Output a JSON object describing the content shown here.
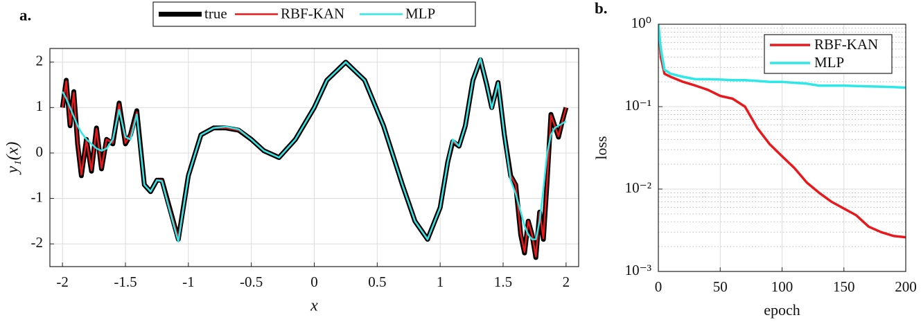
{
  "chart_data": [
    {
      "type": "line",
      "panel_label": "a.",
      "xlabel": "x",
      "ylabel": "y₁(x)",
      "xlim": [
        -2.1,
        2.1
      ],
      "ylim": [
        -2.5,
        2.3
      ],
      "xticks": [
        -2,
        -1.5,
        -1,
        -0.5,
        0,
        0.5,
        1,
        1.5,
        2
      ],
      "yticks": [
        -2,
        -1,
        0,
        1,
        2
      ],
      "grid": true,
      "legend": "top",
      "x": [
        -2,
        -1.97,
        -1.94,
        -1.91,
        -1.88,
        -1.85,
        -1.81,
        -1.77,
        -1.73,
        -1.69,
        -1.65,
        -1.6,
        -1.55,
        -1.5,
        -1.46,
        -1.41,
        -1.35,
        -1.3,
        -1.25,
        -1.21,
        -1.15,
        -1.08,
        -1.0,
        -0.9,
        -0.8,
        -0.7,
        -0.6,
        -0.5,
        -0.4,
        -0.28,
        -0.15,
        0,
        0.1,
        0.25,
        0.4,
        0.55,
        0.7,
        0.8,
        0.9,
        1.0,
        1.06,
        1.1,
        1.15,
        1.2,
        1.26,
        1.32,
        1.37,
        1.41,
        1.46,
        1.51,
        1.56,
        1.6,
        1.64,
        1.67,
        1.7,
        1.73,
        1.76,
        1.79,
        1.82,
        1.85,
        1.88,
        1.91,
        1.94,
        1.97,
        2.0
      ],
      "series": [
        {
          "name": "true",
          "color": "#000000",
          "width": 7,
          "values": [
            1.0,
            1.6,
            0.6,
            1.35,
            0.2,
            -0.5,
            0.3,
            -0.4,
            0.55,
            -0.35,
            0.3,
            0.2,
            1.1,
            0.2,
            0.4,
            0.93,
            -0.7,
            -0.85,
            -0.6,
            -0.6,
            -1.2,
            -1.9,
            -0.5,
            0.4,
            0.55,
            0.55,
            0.5,
            0.3,
            0.05,
            -0.1,
            0.3,
            1.0,
            1.6,
            2.0,
            1.6,
            0.6,
            -0.7,
            -1.5,
            -1.9,
            -1.2,
            -0.2,
            0.25,
            0.15,
            0.6,
            1.6,
            2.05,
            1.5,
            1.0,
            1.55,
            0.4,
            -0.5,
            -0.7,
            -1.8,
            -2.2,
            -1.5,
            -1.8,
            -2.3,
            -1.3,
            -1.9,
            -0.6,
            0.85,
            0.6,
            0.35,
            0.7,
            1.0
          ]
        },
        {
          "name": "RBF-KAN",
          "color": "#e8191c",
          "width": 2.5,
          "values": [
            1.0,
            1.58,
            0.62,
            1.33,
            0.22,
            -0.48,
            0.28,
            -0.38,
            0.53,
            -0.33,
            0.3,
            0.22,
            1.08,
            0.22,
            0.4,
            0.9,
            -0.7,
            -0.84,
            -0.6,
            -0.6,
            -1.2,
            -1.88,
            -0.5,
            0.4,
            0.55,
            0.55,
            0.5,
            0.3,
            0.05,
            -0.1,
            0.3,
            1.0,
            1.6,
            2.0,
            1.6,
            0.6,
            -0.7,
            -1.5,
            -1.9,
            -1.2,
            -0.2,
            0.25,
            0.15,
            0.6,
            1.6,
            2.03,
            1.5,
            1.0,
            1.53,
            0.4,
            -0.5,
            -0.7,
            -1.78,
            -2.18,
            -1.5,
            -1.8,
            -2.28,
            -1.3,
            -1.88,
            -0.6,
            0.83,
            0.6,
            0.37,
            0.7,
            1.0
          ]
        },
        {
          "name": "MLP",
          "color": "#2ee8e8",
          "width": 2.5,
          "values": [
            1.35,
            1.2,
            1.0,
            0.8,
            0.6,
            0.45,
            0.3,
            0.2,
            0.1,
            0.05,
            0.1,
            0.3,
            0.95,
            0.35,
            0.3,
            0.85,
            -0.7,
            -0.85,
            -0.6,
            -0.62,
            -1.25,
            -1.95,
            -0.5,
            0.4,
            0.55,
            0.58,
            0.52,
            0.3,
            0.05,
            -0.1,
            0.3,
            1.0,
            1.6,
            2.0,
            1.6,
            0.6,
            -0.7,
            -1.5,
            -1.9,
            -1.2,
            -0.2,
            0.3,
            0.15,
            0.6,
            1.6,
            2.08,
            1.5,
            0.98,
            1.55,
            0.4,
            -0.6,
            -0.9,
            -1.3,
            -1.6,
            -1.8,
            -1.9,
            -1.9,
            -1.5,
            -0.8,
            0.0,
            0.4,
            0.55,
            0.6,
            0.65,
            0.7
          ]
        }
      ]
    },
    {
      "type": "line",
      "panel_label": "b.",
      "xlabel": "epoch",
      "ylabel": "loss",
      "log_y": true,
      "xlim": [
        0,
        200
      ],
      "ylim": [
        0.001,
        1
      ],
      "xticks": [
        0,
        50,
        100,
        150,
        200
      ],
      "yticks": [
        {
          "value": 0.001,
          "label": "10⁻³"
        },
        {
          "value": 0.01,
          "label": "10⁻²"
        },
        {
          "value": 0.1,
          "label": "10⁻¹"
        },
        {
          "value": 1,
          "label": "10⁰"
        }
      ],
      "grid": true,
      "minor_grid": true,
      "legend": "upper right",
      "x": [
        0,
        2,
        5,
        10,
        20,
        30,
        40,
        50,
        60,
        70,
        80,
        90,
        100,
        110,
        120,
        130,
        140,
        150,
        160,
        170,
        180,
        190,
        200
      ],
      "series": [
        {
          "name": "RBF-KAN",
          "color": "#e8191c",
          "width": 3.5,
          "values": [
            1.0,
            0.4,
            0.25,
            0.23,
            0.2,
            0.18,
            0.16,
            0.135,
            0.125,
            0.1,
            0.055,
            0.035,
            0.025,
            0.018,
            0.012,
            0.009,
            0.007,
            0.0058,
            0.0048,
            0.0035,
            0.003,
            0.0027,
            0.0026
          ]
        },
        {
          "name": "MLP",
          "color": "#2ee8e8",
          "width": 3.5,
          "values": [
            1.0,
            0.5,
            0.28,
            0.25,
            0.23,
            0.215,
            0.215,
            0.213,
            0.21,
            0.21,
            0.205,
            0.2,
            0.2,
            0.195,
            0.19,
            0.18,
            0.18,
            0.18,
            0.178,
            0.176,
            0.175,
            0.173,
            0.17
          ]
        }
      ]
    }
  ]
}
